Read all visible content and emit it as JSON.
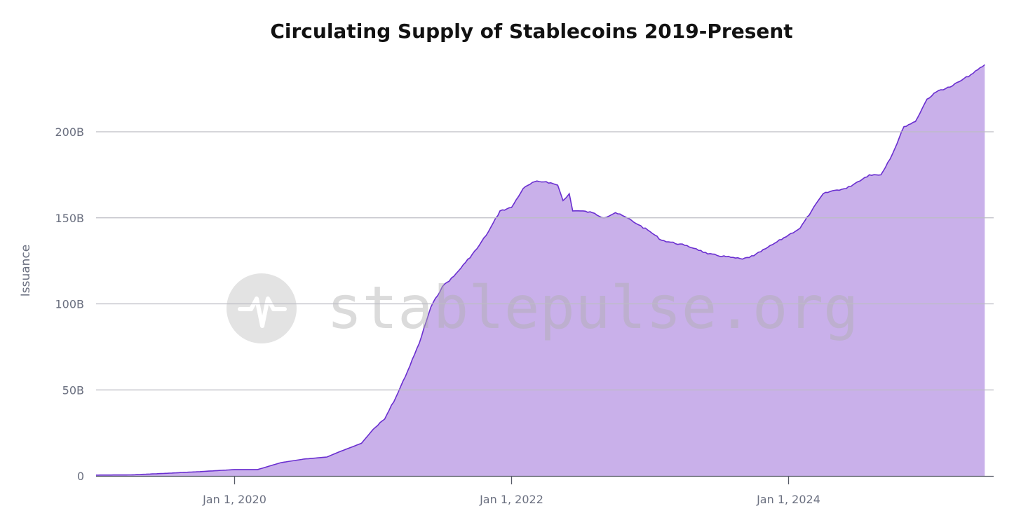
{
  "chart_data": {
    "type": "area",
    "title": "Circulating Supply of Stablecoins 2019-Present",
    "xlabel": "",
    "ylabel": "Issuance",
    "ylim": [
      0,
      240
    ],
    "xlim": [
      "2019-01",
      "2025-07"
    ],
    "grid": true,
    "legend": "none",
    "y_ticks": [
      {
        "v": 0,
        "label": "0"
      },
      {
        "v": 50,
        "label": "50B"
      },
      {
        "v": 100,
        "label": "100B"
      },
      {
        "v": 150,
        "label": "150B"
      },
      {
        "v": 200,
        "label": "200B"
      }
    ],
    "x_ticks": [
      {
        "d": "2020-01",
        "label": "Jan 1, 2020"
      },
      {
        "d": "2022-01",
        "label": "Jan 1, 2022"
      },
      {
        "d": "2024-01",
        "label": "Jan 1, 2024"
      }
    ],
    "colors": {
      "fill": "#c9b0ea",
      "line": "#6a2fd0",
      "grid": "#bdbdc4"
    },
    "series": [
      {
        "unit": "B",
        "x": [
          "2019-01",
          "2019-04",
          "2019-07",
          "2019-10",
          "2020-01",
          "2020-03",
          "2020-05",
          "2020-07",
          "2020-09",
          "2020-10",
          "2020-12",
          "2021-01",
          "2021-02",
          "2021-03",
          "2021-04",
          "2021-05",
          "2021-06",
          "2021-07",
          "2021-08",
          "2021-09",
          "2021-10",
          "2021-11",
          "2021-12",
          "2022-01",
          "2022-02",
          "2022-03",
          "2022-04",
          "2022-05",
          "2022-05-15",
          "2022-06",
          "2022-06-10",
          "2022-07",
          "2022-08",
          "2022-09",
          "2022-10",
          "2022-11",
          "2022-12",
          "2023-01",
          "2023-02",
          "2023-04",
          "2023-05",
          "2023-06",
          "2023-08",
          "2023-09",
          "2023-10",
          "2023-11",
          "2023-12",
          "2024-01",
          "2024-02",
          "2024-03",
          "2024-04",
          "2024-05",
          "2024-06",
          "2024-07",
          "2024-08",
          "2024-09",
          "2024-10",
          "2024-11",
          "2024-12",
          "2025-01",
          "2025-02",
          "2025-03",
          "2025-04",
          "2025-05",
          "2025-06"
        ],
        "values": [
          0.5,
          0.6,
          1.5,
          2.5,
          3.7,
          3.7,
          7.7,
          9.8,
          11,
          13.8,
          19,
          27,
          33,
          46,
          61,
          77,
          98,
          110,
          116,
          124,
          132,
          142,
          154,
          156,
          167,
          171,
          171,
          169,
          160,
          164,
          154,
          154,
          153,
          150,
          153,
          150,
          146,
          142,
          137,
          134,
          132,
          129,
          127,
          126,
          128,
          132,
          136,
          140,
          144,
          154,
          164,
          166,
          167,
          171,
          175,
          175,
          187,
          203,
          206,
          219,
          224,
          226,
          230,
          234,
          239
        ]
      }
    ]
  },
  "watermark": {
    "text": "stablepulse.org",
    "icon": "pulse-logo-icon"
  }
}
